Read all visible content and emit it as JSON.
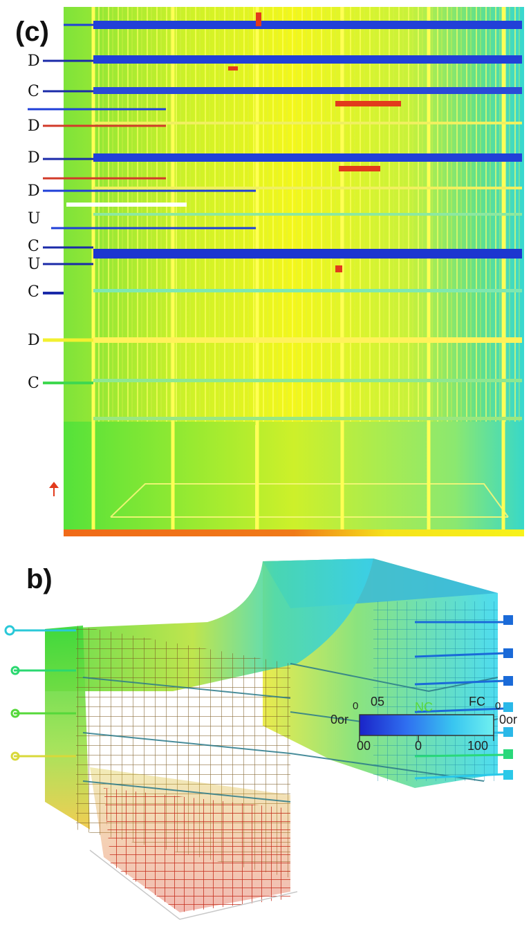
{
  "panels": {
    "c": {
      "label": "(c)",
      "row_labels": [
        "D",
        "C",
        "D",
        "D",
        "D",
        "U",
        "C",
        "U",
        "C",
        "D",
        "C"
      ]
    },
    "b": {
      "label": "b)",
      "colorbar": {
        "top_labels": [
          "05",
          "NC",
          "FC"
        ],
        "left_end": "0",
        "right_end": "0",
        "left_side": "0or",
        "right_side": "0or",
        "tick_labels": [
          "00",
          "0",
          "100"
        ],
        "colors": [
          "#1a24c8",
          "#2f6ff0",
          "#39c6f0",
          "#6ff0f0"
        ]
      }
    }
  },
  "colors": {
    "blue": "#1f3fd8",
    "red": "#e23a1c",
    "yellow": "#f7f21a",
    "green": "#3fe03a",
    "cyan": "#27d6e0"
  }
}
